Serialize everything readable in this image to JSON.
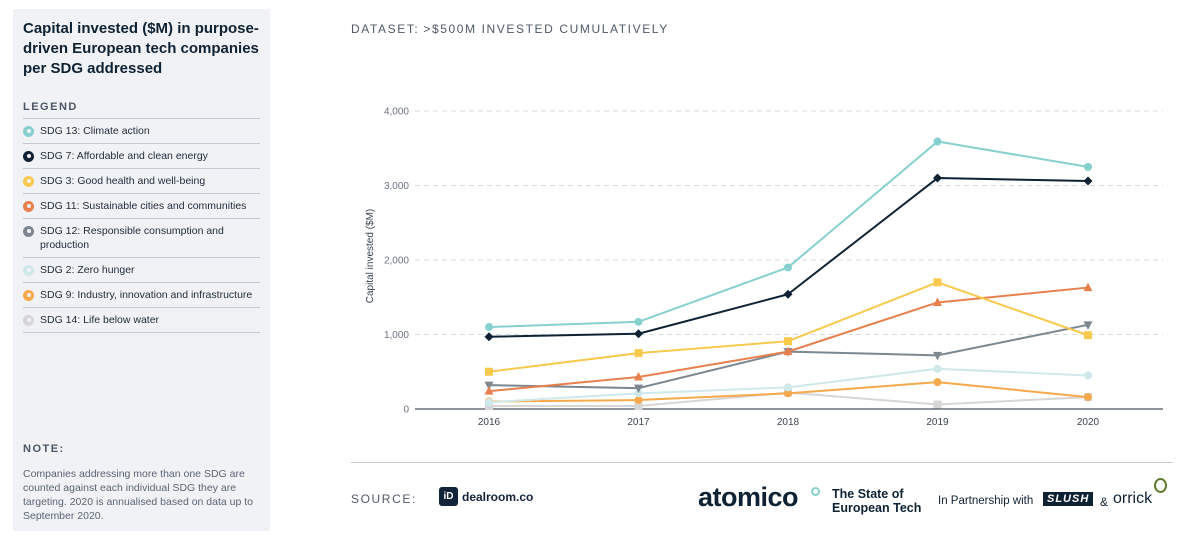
{
  "sidebar": {
    "title": "Capital invested ($M) in purpose-driven European tech companies per SDG addressed",
    "legend_heading": "LEGEND",
    "note_heading": "NOTE:",
    "note_text": "Companies addressing more than one SDG are counted against each individual SDG they are targeting. 2020 is annualised based on data up to September 2020."
  },
  "dataset": {
    "label": "DATASET:",
    "value": ">$500M INVESTED CUMULATIVELY"
  },
  "footer": {
    "source_label": "SOURCE:",
    "dealroom_icon": "iD",
    "dealroom_name": "dealroom.co",
    "atomico": "atomico",
    "report_line1": "The State of",
    "report_line2": "European Tech",
    "partnership": "In Partnership with",
    "slush": "SLUSH",
    "amp": "&",
    "orrick": "orrick"
  },
  "chart_data": {
    "type": "line",
    "title": "Capital invested ($M) in purpose-driven European tech companies per SDG addressed",
    "xlabel": "",
    "ylabel": "Capital invested ($M)",
    "ylim": [
      0,
      4000
    ],
    "yticks": [
      0,
      1000,
      2000,
      3000,
      4000
    ],
    "ytick_labels": [
      "0",
      "1,000",
      "2,000",
      "3,000",
      "4,000"
    ],
    "x": [
      "2016",
      "2017",
      "2018",
      "2019",
      "2020"
    ],
    "grid": "horizontal dashed",
    "series": [
      {
        "name": "SDG 13: Climate action",
        "color": "#86d0cf",
        "marker": "circle",
        "values": [
          1100,
          1170,
          1900,
          3590,
          3250
        ]
      },
      {
        "name": "SDG 7: Affordable and clean energy",
        "color": "#0f2234",
        "marker": "diamond",
        "values": [
          970,
          1010,
          1540,
          3100,
          3060
        ]
      },
      {
        "name": "SDG 3: Good health and well-being",
        "color": "#f7c94c",
        "marker": "square",
        "values": [
          500,
          750,
          910,
          1700,
          990
        ]
      },
      {
        "name": "SDG 11: Sustainable cities and communities",
        "color": "#e8804d",
        "marker": "triangle-up",
        "values": [
          240,
          430,
          770,
          1430,
          1630
        ]
      },
      {
        "name": "SDG 12: Responsible consumption and production",
        "color": "#7c878f",
        "marker": "triangle-down",
        "values": [
          320,
          280,
          770,
          720,
          1130
        ]
      },
      {
        "name": "SDG 2: Zero hunger",
        "color": "#cfe8ea",
        "marker": "circle",
        "values": [
          90,
          210,
          290,
          540,
          450
        ]
      },
      {
        "name": "SDG 9: Industry, innovation and infrastructure",
        "color": "#f5a94a",
        "marker": "circle",
        "values": [
          100,
          120,
          210,
          360,
          160
        ]
      },
      {
        "name": "SDG 14: Life below water",
        "color": "#d6d6d6",
        "marker": "square",
        "values": [
          40,
          40,
          220,
          60,
          160
        ]
      }
    ]
  }
}
